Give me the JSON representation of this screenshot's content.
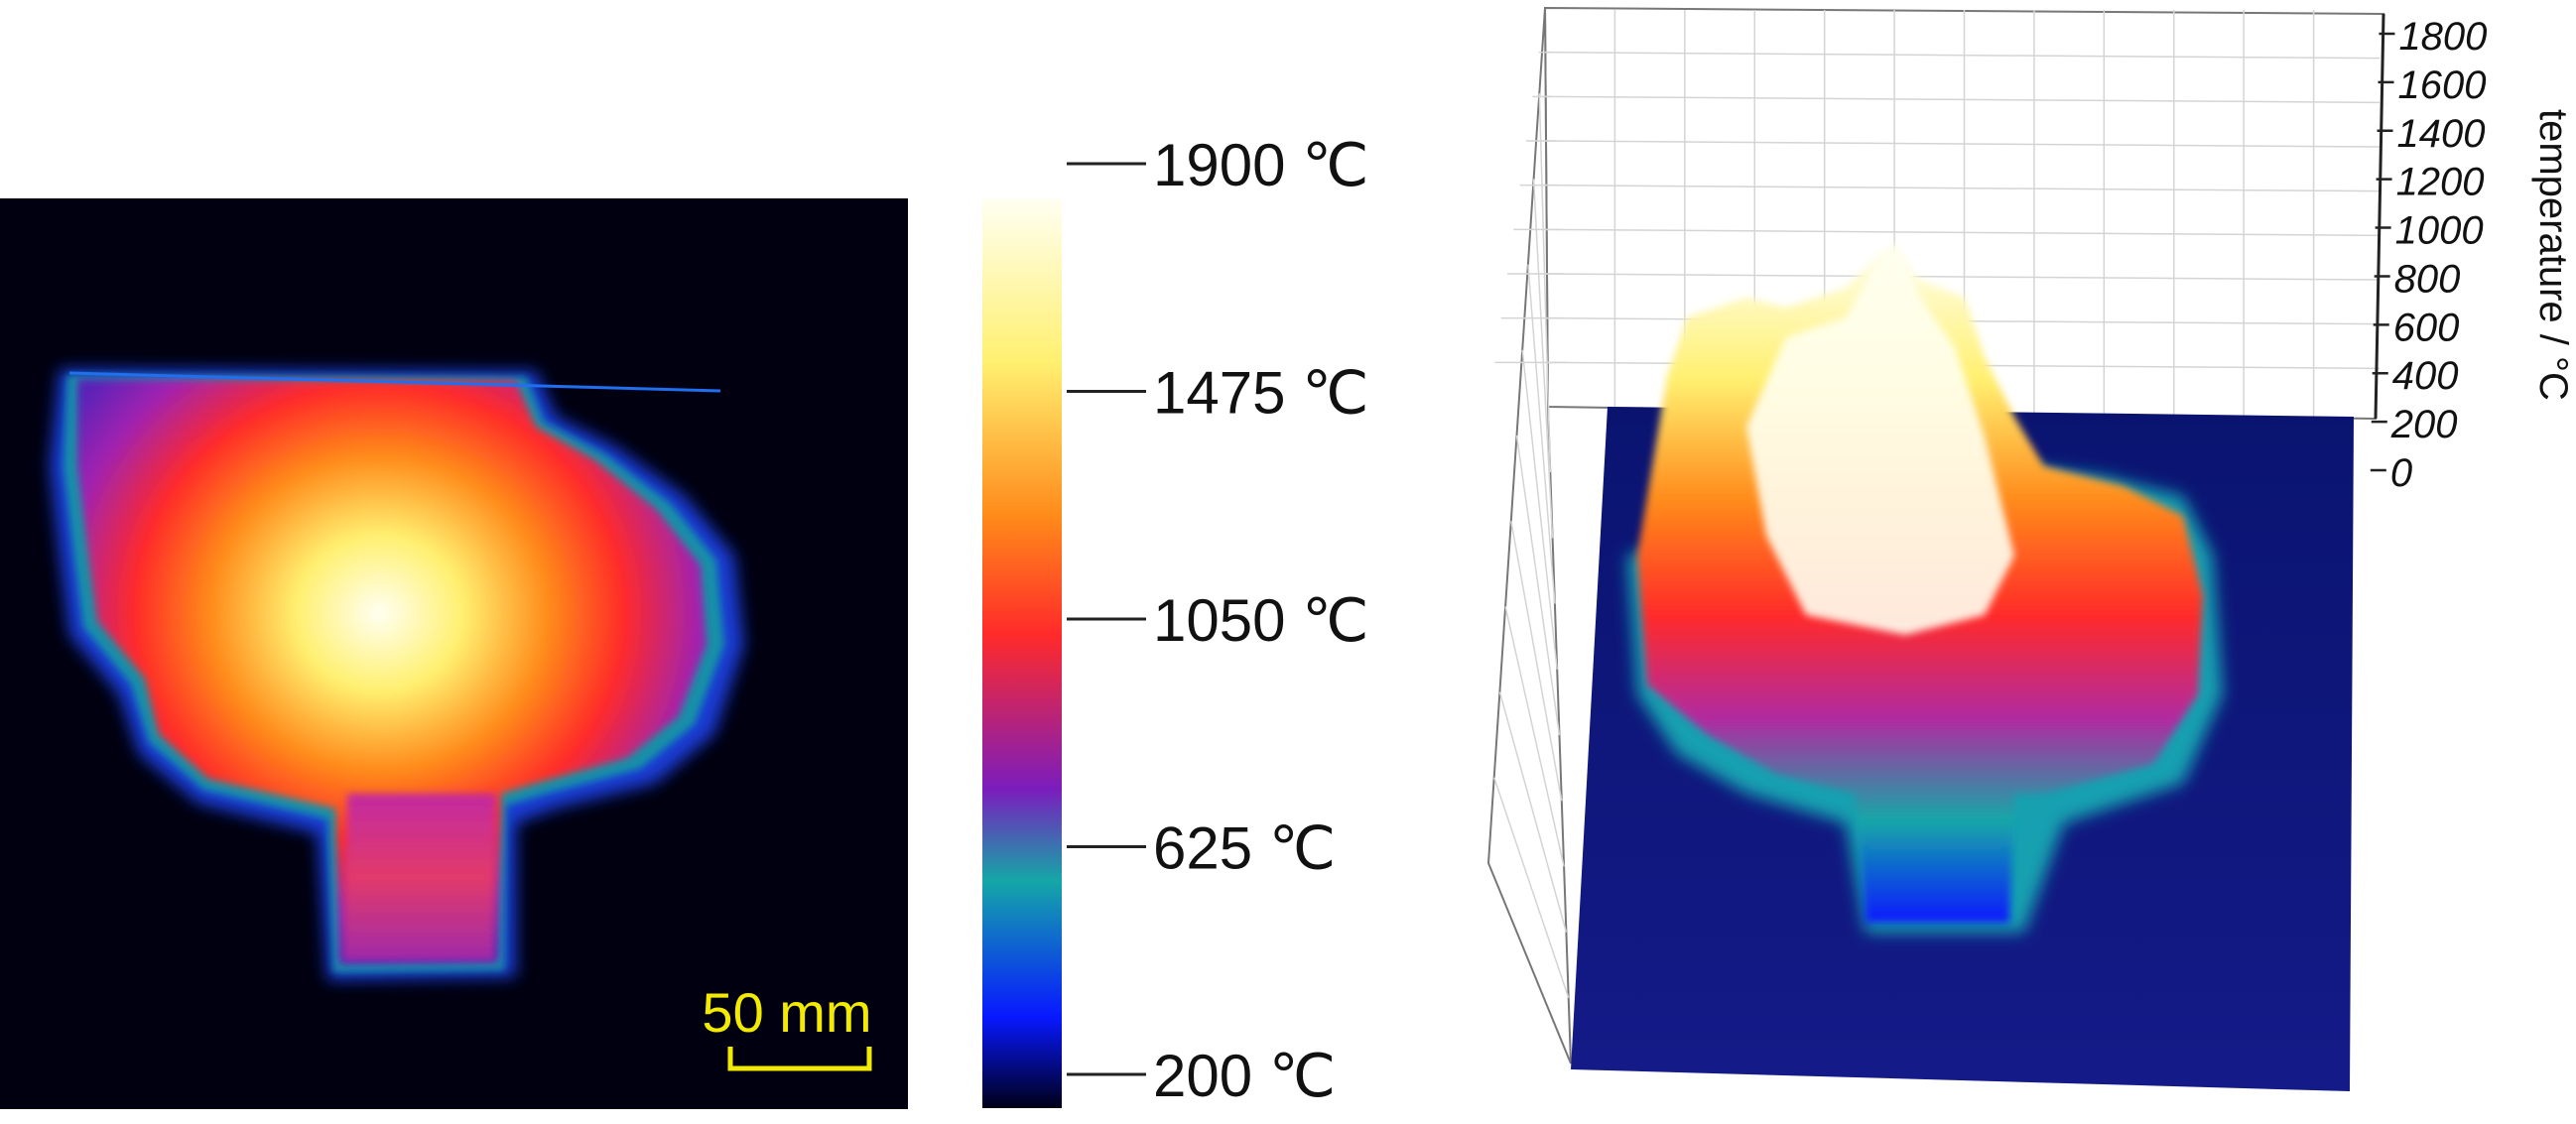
{
  "colors": {
    "background": "#000010",
    "scale_bar": "#f2ea00",
    "colormap": [
      "#000018",
      "#0818ff",
      "#15a7a7",
      "#7a1dbd",
      "#ff2a2a",
      "#ff8a1a",
      "#fff070",
      "#fffff2"
    ]
  },
  "thermal_image": {
    "scale_bar_label": "50 mm"
  },
  "colorbar": {
    "unit": "℃",
    "ticks": [
      {
        "value": 1900,
        "label": "1900"
      },
      {
        "value": 1475,
        "label": "1475"
      },
      {
        "value": 1050,
        "label": "1050"
      },
      {
        "value": 625,
        "label": "625"
      },
      {
        "value": 200,
        "label": "200"
      }
    ]
  },
  "chart_data": {
    "type": "surface",
    "zlabel": "temperature / °C",
    "zlim": [
      0,
      1900
    ],
    "zticks": [
      0,
      200,
      400,
      600,
      800,
      1000,
      1200,
      1400,
      1600,
      1800
    ],
    "grid": true,
    "colorbar_range": [
      200,
      1900
    ]
  }
}
